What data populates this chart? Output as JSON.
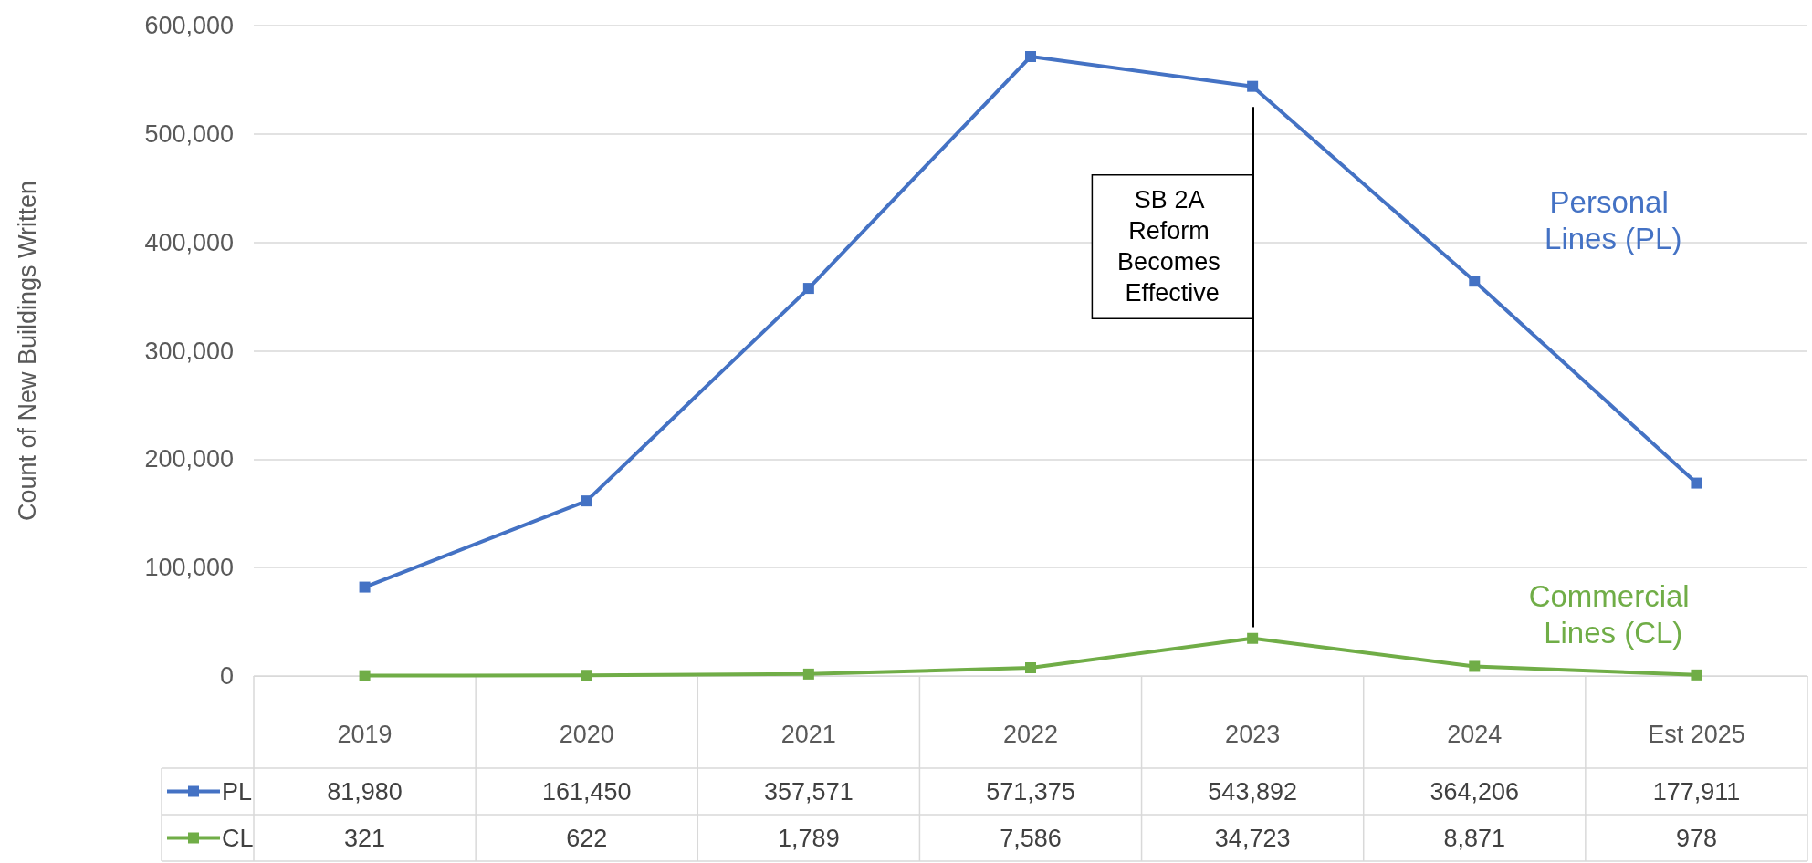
{
  "chart_data": {
    "type": "line",
    "ylabel": "Count of New Buildings Written",
    "categories": [
      "2019",
      "2020",
      "2021",
      "2022",
      "2023",
      "2024",
      "Est 2025"
    ],
    "series": [
      {
        "name": "PL",
        "color": "#4472c4",
        "values": [
          81980,
          161450,
          357571,
          571375,
          543892,
          364206,
          177911
        ],
        "value_labels": [
          "81,980",
          "161,450",
          "357,571",
          "571,375",
          "543,892",
          "364,206",
          "177,911"
        ]
      },
      {
        "name": "CL",
        "color": "#70ad47",
        "values": [
          321,
          622,
          1789,
          7586,
          34723,
          8871,
          978
        ],
        "value_labels": [
          "321",
          "622",
          "1,789",
          "7,586",
          "34,723",
          "8,871",
          "978"
        ]
      }
    ],
    "ylim": [
      0,
      600000
    ],
    "yticks": [
      {
        "value": 0,
        "label": "0"
      },
      {
        "value": 100000,
        "label": "100,000"
      },
      {
        "value": 200000,
        "label": "200,000"
      },
      {
        "value": 300000,
        "label": "300,000"
      },
      {
        "value": 400000,
        "label": "400,000"
      },
      {
        "value": 500000,
        "label": "500,000"
      },
      {
        "value": 600000,
        "label": "600,000"
      }
    ],
    "grid": "y",
    "marker": "square",
    "line_style": "solid",
    "legend": "bottom",
    "ref_lines": [
      {
        "axis": "x",
        "value": "2023",
        "label": "SB 2A Reform Becomes Effective"
      }
    ],
    "annotations": [
      "Personal Lines (PL)",
      "Commercial Lines (CL)"
    ]
  }
}
